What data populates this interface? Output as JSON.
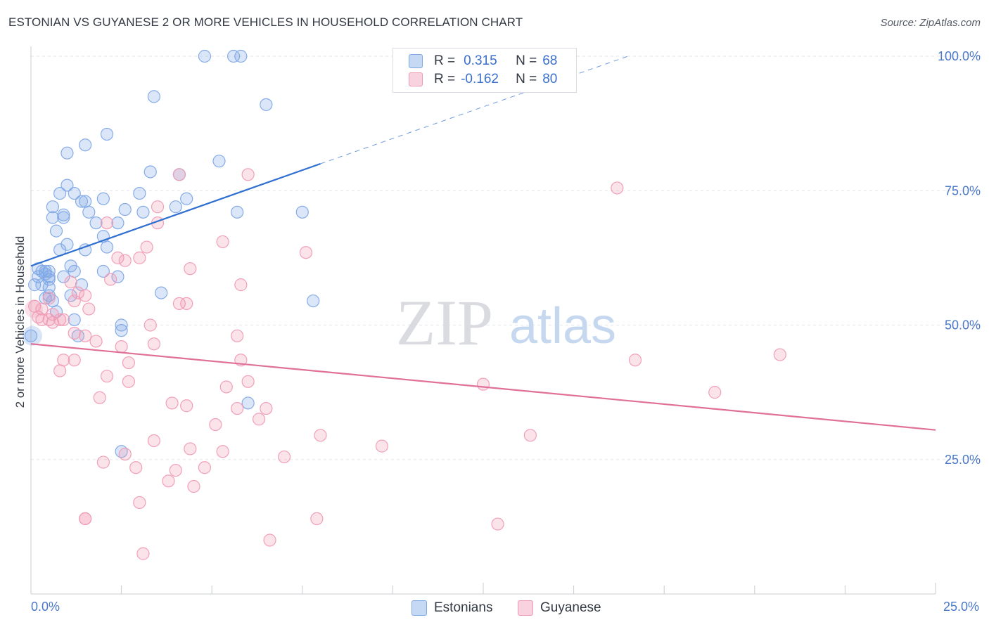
{
  "title": "ESTONIAN VS GUYANESE 2 OR MORE VEHICLES IN HOUSEHOLD CORRELATION CHART",
  "source": "Source: ZipAtlas.com",
  "watermark": {
    "zip": "ZIP",
    "atlas": "atlas"
  },
  "legend": {
    "rows": [
      {
        "r_label": "R =",
        "r_value": "0.315",
        "n_label": "N =",
        "n_value": "68",
        "color": "#7fa8e6"
      },
      {
        "r_label": "R =",
        "r_value": "-0.162",
        "n_label": "N =",
        "n_value": "80",
        "color": "#f09bb5"
      }
    ]
  },
  "bottom_legend": [
    {
      "label": "Estonians",
      "color": "#7fa8e6"
    },
    {
      "label": "Guyanese",
      "color": "#f09bb5"
    }
  ],
  "chart_data": {
    "type": "scatter",
    "ylabel": "2 or more Vehicles in Household",
    "xlabel": "",
    "xlim": [
      0,
      25
    ],
    "ylim": [
      0,
      100
    ],
    "x_tick_labels": [
      {
        "value": 0,
        "label": "0.0%"
      },
      {
        "value": 25,
        "label": "25.0%"
      }
    ],
    "y_tick_labels": [
      {
        "value": 100,
        "label": "100.0%"
      },
      {
        "value": 75,
        "label": "75.0%"
      },
      {
        "value": 50,
        "label": "50.0%"
      },
      {
        "value": 25,
        "label": "25.0%"
      }
    ],
    "grid": true,
    "series": [
      {
        "name": "Estonians",
        "color": "#7fa8e6",
        "line_color": "#2e6fd1",
        "trend": {
          "x": [
            0,
            8
          ],
          "y": [
            61.0,
            80.0
          ],
          "dashed_to": [
            16.5,
            100.0
          ]
        },
        "points": [
          [
            4.8,
            100
          ],
          [
            5.6,
            100
          ],
          [
            5.8,
            100
          ],
          [
            3.4,
            92.5
          ],
          [
            6.5,
            91.0
          ],
          [
            2.1,
            85.5
          ],
          [
            1.5,
            83.5
          ],
          [
            1.0,
            82.0
          ],
          [
            5.2,
            80.5
          ],
          [
            3.3,
            78.5
          ],
          [
            4.1,
            78.0
          ],
          [
            1.0,
            76.0
          ],
          [
            0.8,
            74.5
          ],
          [
            1.2,
            74.5
          ],
          [
            2.0,
            73.5
          ],
          [
            3.0,
            74.5
          ],
          [
            4.3,
            73.5
          ],
          [
            1.4,
            73.0
          ],
          [
            1.5,
            73.0
          ],
          [
            0.6,
            72.0
          ],
          [
            2.6,
            71.5
          ],
          [
            4.0,
            72.0
          ],
          [
            1.6,
            71.0
          ],
          [
            0.9,
            70.5
          ],
          [
            3.1,
            71.0
          ],
          [
            5.7,
            71.0
          ],
          [
            0.6,
            70.0
          ],
          [
            0.9,
            70.0
          ],
          [
            7.5,
            71.0
          ],
          [
            1.8,
            69.0
          ],
          [
            2.4,
            69.0
          ],
          [
            0.7,
            67.5
          ],
          [
            2.0,
            66.5
          ],
          [
            1.0,
            65.0
          ],
          [
            2.1,
            64.5
          ],
          [
            0.8,
            64.0
          ],
          [
            1.5,
            64.0
          ],
          [
            1.1,
            61.0
          ],
          [
            0.2,
            60.5
          ],
          [
            0.3,
            60.0
          ],
          [
            0.4,
            60.0
          ],
          [
            0.5,
            60.0
          ],
          [
            0.4,
            59.5
          ],
          [
            0.2,
            59.0
          ],
          [
            0.5,
            59.0
          ],
          [
            1.2,
            60.0
          ],
          [
            2.0,
            60.0
          ],
          [
            0.9,
            59.0
          ],
          [
            0.5,
            58.5
          ],
          [
            2.4,
            59.0
          ],
          [
            0.1,
            57.5
          ],
          [
            0.3,
            57.5
          ],
          [
            0.5,
            57.0
          ],
          [
            1.4,
            57.5
          ],
          [
            3.6,
            56.0
          ],
          [
            0.5,
            55.5
          ],
          [
            0.4,
            55.0
          ],
          [
            1.1,
            55.5
          ],
          [
            0.6,
            54.5
          ],
          [
            7.8,
            54.5
          ],
          [
            0.7,
            52.5
          ],
          [
            1.2,
            51.0
          ],
          [
            2.5,
            50.0
          ],
          [
            2.5,
            49.0
          ],
          [
            0.0,
            48.0
          ],
          [
            1.3,
            48.0
          ],
          [
            6.0,
            35.5
          ],
          [
            2.5,
            26.5
          ]
        ]
      },
      {
        "name": "Guyanese",
        "color": "#f09bb5",
        "line_color": "#e07098",
        "trend": {
          "x": [
            0,
            25
          ],
          "y": [
            46.5,
            30.5
          ]
        },
        "points": [
          [
            4.1,
            78.0
          ],
          [
            6.0,
            78.0
          ],
          [
            16.2,
            75.5
          ],
          [
            3.5,
            72.0
          ],
          [
            2.1,
            69.0
          ],
          [
            3.5,
            69.0
          ],
          [
            5.3,
            65.5
          ],
          [
            3.2,
            64.5
          ],
          [
            7.6,
            63.5
          ],
          [
            2.4,
            62.5
          ],
          [
            3.0,
            62.5
          ],
          [
            2.6,
            62.0
          ],
          [
            4.4,
            60.5
          ],
          [
            2.2,
            58.5
          ],
          [
            1.1,
            58.0
          ],
          [
            5.8,
            57.5
          ],
          [
            1.3,
            56.0
          ],
          [
            1.5,
            55.5
          ],
          [
            0.5,
            55.0
          ],
          [
            1.2,
            54.5
          ],
          [
            4.1,
            54.0
          ],
          [
            4.3,
            54.0
          ],
          [
            0.1,
            53.5
          ],
          [
            0.3,
            53.0
          ],
          [
            1.6,
            53.0
          ],
          [
            0.6,
            52.0
          ],
          [
            0.2,
            51.5
          ],
          [
            0.5,
            51.0
          ],
          [
            0.8,
            51.0
          ],
          [
            0.3,
            51.0
          ],
          [
            0.6,
            50.5
          ],
          [
            3.3,
            50.0
          ],
          [
            1.2,
            48.5
          ],
          [
            1.5,
            48.0
          ],
          [
            5.7,
            48.0
          ],
          [
            1.8,
            47.0
          ],
          [
            3.4,
            46.5
          ],
          [
            2.5,
            46.0
          ],
          [
            1.2,
            43.5
          ],
          [
            0.9,
            43.5
          ],
          [
            5.8,
            43.5
          ],
          [
            2.7,
            43.0
          ],
          [
            16.7,
            43.5
          ],
          [
            20.7,
            44.5
          ],
          [
            0.8,
            41.5
          ],
          [
            2.1,
            40.5
          ],
          [
            2.7,
            39.5
          ],
          [
            6.0,
            39.5
          ],
          [
            12.5,
            39.0
          ],
          [
            5.4,
            38.5
          ],
          [
            18.9,
            37.5
          ],
          [
            1.9,
            36.5
          ],
          [
            3.9,
            35.5
          ],
          [
            4.3,
            35.0
          ],
          [
            5.7,
            34.5
          ],
          [
            6.5,
            34.5
          ],
          [
            6.3,
            32.5
          ],
          [
            5.1,
            31.5
          ],
          [
            8.0,
            29.5
          ],
          [
            13.8,
            29.5
          ],
          [
            3.4,
            28.5
          ],
          [
            9.7,
            27.5
          ],
          [
            4.4,
            27.0
          ],
          [
            5.3,
            26.5
          ],
          [
            2.6,
            26.0
          ],
          [
            2.0,
            24.5
          ],
          [
            7.0,
            25.5
          ],
          [
            2.9,
            23.5
          ],
          [
            4.8,
            23.5
          ],
          [
            4.0,
            23.0
          ],
          [
            3.8,
            21.0
          ],
          [
            4.5,
            20.0
          ],
          [
            3.0,
            17.0
          ],
          [
            1.5,
            14.0
          ],
          [
            7.9,
            14.0
          ],
          [
            12.9,
            13.0
          ],
          [
            6.6,
            10.0
          ],
          [
            3.1,
            7.5
          ],
          [
            1.5,
            14.0
          ],
          [
            0.9,
            51.0
          ]
        ]
      }
    ]
  }
}
